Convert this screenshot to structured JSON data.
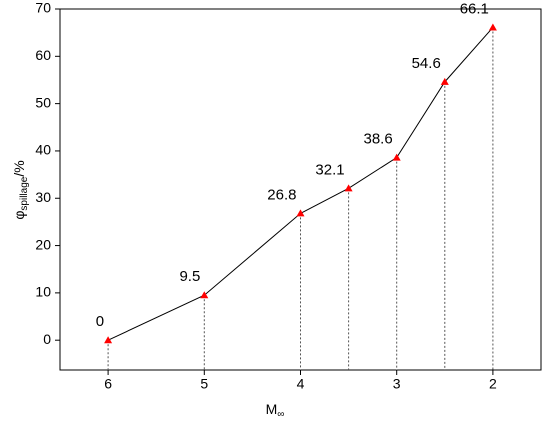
{
  "chart_data": {
    "type": "line",
    "ylabel": "φ",
    "ylabel_sub": "spillage",
    "ylabel_suffix": "/%",
    "xlabel": "M",
    "xlabel_sub": "∞",
    "x": [
      6,
      5,
      4,
      3.5,
      3,
      2.5,
      2
    ],
    "series": [
      {
        "name": "φspillage",
        "color": "#000000",
        "marker_color": "#ff0000",
        "values": [
          0,
          9.5,
          26.8,
          32.1,
          38.6,
          54.6,
          66.1
        ]
      }
    ],
    "xlim": [
      6.5,
      1.5
    ],
    "xticks": [
      6,
      5,
      4,
      3,
      2
    ],
    "ylim": [
      -6.3,
      70
    ],
    "yticks": [
      0,
      10,
      20,
      30,
      40,
      50,
      60,
      70
    ],
    "drop_lines": true,
    "data_labels": true
  }
}
